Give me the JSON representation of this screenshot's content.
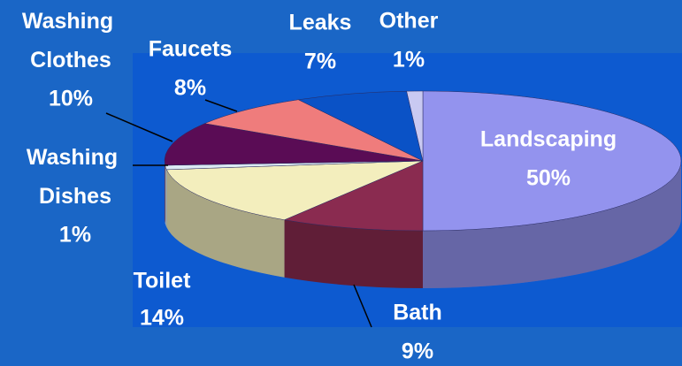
{
  "chart_data": {
    "type": "pie",
    "categories": [
      "Landscaping",
      "Bath",
      "Toilet",
      "Washing Dishes",
      "Washing Clothes",
      "Faucets",
      "Leaks",
      "Other"
    ],
    "values": [
      50,
      9,
      14,
      1,
      10,
      8,
      7,
      1
    ],
    "value_labels": [
      "50%",
      "9%",
      "14%",
      "1%",
      "10%",
      "8%",
      "7%",
      "1%"
    ],
    "colors": [
      "#9393ee",
      "#8a2b50",
      "#f3eebd",
      "#dbe9f3",
      "#5a0c55",
      "#ef7c7c",
      "#0a52c6",
      "#c9c9f2"
    ]
  }
}
